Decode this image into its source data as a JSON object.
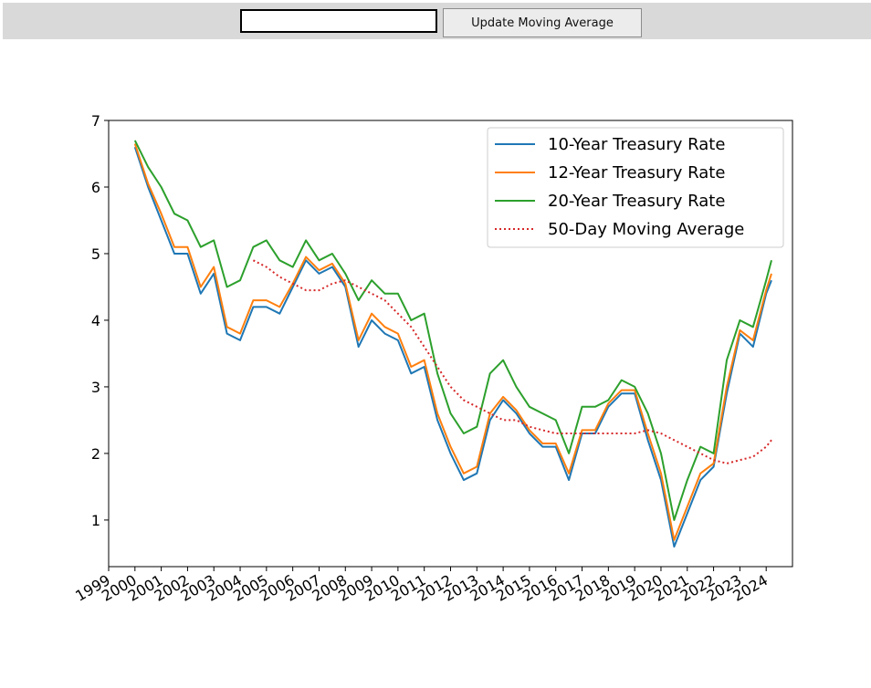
{
  "toolbar": {
    "input_value": "",
    "update_button_label": "Update Moving Average"
  },
  "chart_data": {
    "type": "line",
    "title": "",
    "xlabel": "",
    "ylabel": "",
    "xlim": [
      1999,
      2025
    ],
    "ylim": [
      0.3,
      7.0
    ],
    "y_ticks": [
      "1",
      "2",
      "3",
      "4",
      "5",
      "6",
      "7"
    ],
    "x_ticks": [
      "1999",
      "2000",
      "2001",
      "2002",
      "2003",
      "2004",
      "2005",
      "2006",
      "2007",
      "2008",
      "2009",
      "2010",
      "2011",
      "2012",
      "2013",
      "2014",
      "2015",
      "2016",
      "2017",
      "2018",
      "2019",
      "2020",
      "2021",
      "2022",
      "2023",
      "2024"
    ],
    "x_tick_rotation_deg": -30,
    "grid": false,
    "legend_position": "upper-right",
    "legend": [
      "10-Year Treasury Rate",
      "12-Year Treasury Rate",
      "20-Year Treasury Rate",
      "50-Day Moving Average"
    ],
    "x": [
      2000.0,
      2000.5,
      2001.0,
      2001.5,
      2002.0,
      2002.5,
      2003.0,
      2003.5,
      2004.0,
      2004.5,
      2005.0,
      2005.5,
      2006.0,
      2006.5,
      2007.0,
      2007.5,
      2008.0,
      2008.5,
      2009.0,
      2009.5,
      2010.0,
      2010.5,
      2011.0,
      2011.5,
      2012.0,
      2012.5,
      2013.0,
      2013.5,
      2014.0,
      2014.5,
      2015.0,
      2015.5,
      2016.0,
      2016.5,
      2017.0,
      2017.5,
      2018.0,
      2018.5,
      2019.0,
      2019.5,
      2020.0,
      2020.5,
      2021.0,
      2021.5,
      2022.0,
      2022.5,
      2023.0,
      2023.5,
      2024.0,
      2024.2
    ],
    "series": [
      {
        "name": "10-Year Treasury Rate",
        "color": "#1f77b4",
        "style": "solid",
        "values": [
          6.6,
          6.0,
          5.5,
          5.0,
          5.0,
          4.4,
          4.7,
          3.8,
          3.7,
          4.2,
          4.2,
          4.1,
          4.5,
          4.9,
          4.7,
          4.8,
          4.5,
          3.6,
          4.0,
          3.8,
          3.7,
          3.2,
          3.3,
          2.5,
          2.0,
          1.6,
          1.7,
          2.5,
          2.8,
          2.6,
          2.3,
          2.1,
          2.1,
          1.6,
          2.3,
          2.3,
          2.7,
          2.9,
          2.9,
          2.2,
          1.6,
          0.6,
          1.1,
          1.6,
          1.8,
          2.9,
          3.8,
          3.6,
          4.4,
          4.6
        ]
      },
      {
        "name": "12-Year Treasury Rate",
        "color": "#ff7f0e",
        "style": "solid",
        "values": [
          6.65,
          6.05,
          5.6,
          5.1,
          5.1,
          4.5,
          4.8,
          3.9,
          3.8,
          4.3,
          4.3,
          4.2,
          4.55,
          4.95,
          4.75,
          4.85,
          4.55,
          3.7,
          4.1,
          3.9,
          3.8,
          3.3,
          3.4,
          2.6,
          2.1,
          1.7,
          1.8,
          2.6,
          2.85,
          2.65,
          2.35,
          2.15,
          2.15,
          1.7,
          2.35,
          2.35,
          2.75,
          2.95,
          2.95,
          2.3,
          1.7,
          0.7,
          1.2,
          1.7,
          1.85,
          3.0,
          3.85,
          3.7,
          4.45,
          4.7
        ]
      },
      {
        "name": "20-Year Treasury Rate",
        "color": "#2ca02c",
        "style": "solid",
        "values": [
          6.7,
          6.3,
          6.0,
          5.6,
          5.5,
          5.1,
          5.2,
          4.5,
          4.6,
          5.1,
          5.2,
          4.9,
          4.8,
          5.2,
          4.9,
          5.0,
          4.7,
          4.3,
          4.6,
          4.4,
          4.4,
          4.0,
          4.1,
          3.2,
          2.6,
          2.3,
          2.4,
          3.2,
          3.4,
          3.0,
          2.7,
          2.6,
          2.5,
          2.0,
          2.7,
          2.7,
          2.8,
          3.1,
          3.0,
          2.6,
          2.0,
          1.0,
          1.6,
          2.1,
          2.0,
          3.4,
          4.0,
          3.9,
          4.6,
          4.9
        ]
      },
      {
        "name": "50-Day Moving Average",
        "color": "#d62728",
        "style": "dotted",
        "values": [
          null,
          null,
          null,
          null,
          null,
          null,
          null,
          null,
          null,
          4.9,
          4.8,
          4.65,
          4.55,
          4.45,
          4.45,
          4.55,
          4.6,
          4.5,
          4.4,
          4.3,
          4.1,
          3.9,
          3.6,
          3.3,
          3.0,
          2.8,
          2.7,
          2.6,
          2.5,
          2.5,
          2.4,
          2.35,
          2.3,
          2.3,
          2.3,
          2.3,
          2.3,
          2.3,
          2.3,
          2.35,
          2.3,
          2.2,
          2.1,
          2.0,
          1.9,
          1.85,
          1.9,
          1.95,
          2.1,
          2.2
        ]
      }
    ]
  }
}
